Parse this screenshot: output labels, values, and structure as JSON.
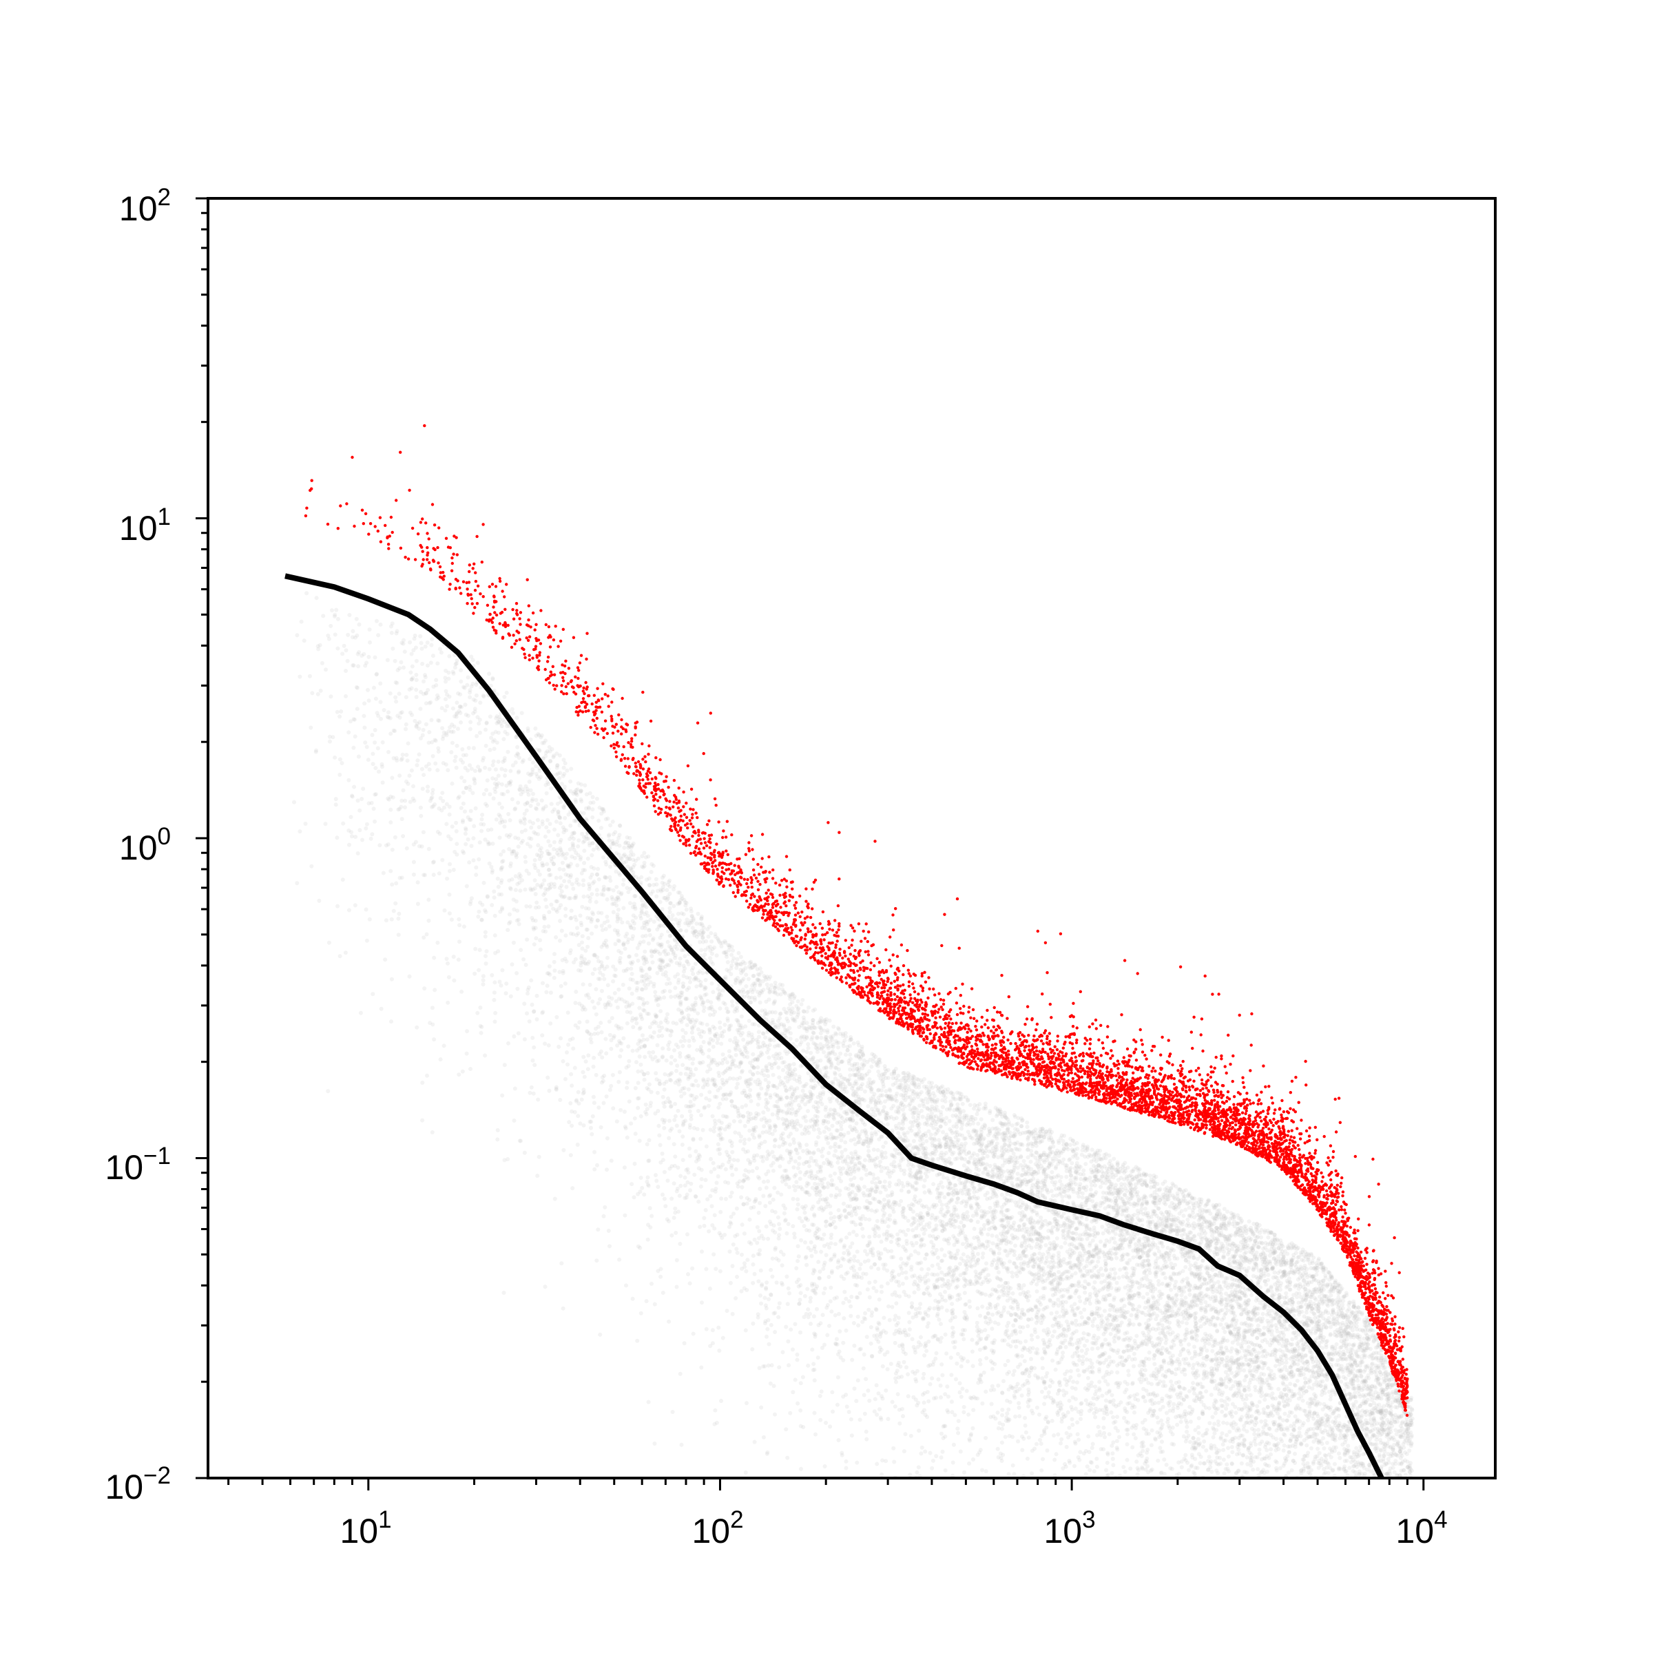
{
  "chart_data": {
    "type": "scatter",
    "title": "",
    "xlabel": "",
    "ylabel": "",
    "x_scale": "log",
    "y_scale": "log",
    "xlim": [
      3.5,
      16000
    ],
    "ylim": [
      0.01,
      100
    ],
    "x_ticks": [
      {
        "base": "10",
        "exp": "1",
        "value": 10
      },
      {
        "base": "10",
        "exp": "2",
        "value": 100
      },
      {
        "base": "10",
        "exp": "3",
        "value": 1000
      },
      {
        "base": "10",
        "exp": "4",
        "value": 10000
      }
    ],
    "y_ticks": [
      {
        "base": "10",
        "exp": "−2",
        "value": 0.01
      },
      {
        "base": "10",
        "exp": "−1",
        "value": 0.1
      },
      {
        "base": "10",
        "exp": "0",
        "value": 1
      },
      {
        "base": "10",
        "exp": "1",
        "value": 10
      },
      {
        "base": "10",
        "exp": "2",
        "value": 100
      }
    ],
    "grid": false,
    "legend": "none",
    "series": [
      {
        "type": "scatter-density",
        "color": "#bdbdbd",
        "x_range": [
          6,
          9300
        ],
        "upper_envelope": [
          [
            6,
            7.0
          ],
          [
            20,
            4.2
          ],
          [
            50,
            1.3
          ],
          [
            100,
            0.55
          ],
          [
            300,
            0.22
          ],
          [
            1000,
            0.13
          ],
          [
            3000,
            0.075
          ],
          [
            5000,
            0.055
          ],
          [
            7000,
            0.035
          ],
          [
            9000,
            0.02
          ]
        ]
      },
      {
        "type": "scatter",
        "color": "#ff0000",
        "ridge": [
          [
            6,
            11.5
          ],
          [
            8,
            10.0
          ],
          [
            10,
            9.3
          ],
          [
            15,
            7.5
          ],
          [
            20,
            5.5
          ],
          [
            30,
            3.7
          ],
          [
            50,
            2.0
          ],
          [
            70,
            1.2
          ],
          [
            100,
            0.78
          ],
          [
            150,
            0.55
          ],
          [
            200,
            0.42
          ],
          [
            300,
            0.3
          ],
          [
            500,
            0.21
          ],
          [
            1000,
            0.175
          ],
          [
            2000,
            0.14
          ],
          [
            3000,
            0.12
          ],
          [
            4000,
            0.1
          ],
          [
            5000,
            0.075
          ],
          [
            6000,
            0.055
          ],
          [
            7000,
            0.035
          ],
          [
            8000,
            0.025
          ],
          [
            9000,
            0.017
          ]
        ]
      },
      {
        "type": "line",
        "color": "#000000",
        "points": [
          [
            5.8,
            6.6
          ],
          [
            8,
            6.1
          ],
          [
            10,
            5.6
          ],
          [
            13,
            5.0
          ],
          [
            15,
            4.5
          ],
          [
            18,
            3.8
          ],
          [
            22,
            2.9
          ],
          [
            30,
            1.8
          ],
          [
            40,
            1.15
          ],
          [
            60,
            0.68
          ],
          [
            80,
            0.46
          ],
          [
            100,
            0.36
          ],
          [
            130,
            0.27
          ],
          [
            160,
            0.22
          ],
          [
            200,
            0.17
          ],
          [
            250,
            0.14
          ],
          [
            300,
            0.12
          ],
          [
            350,
            0.1
          ],
          [
            400,
            0.095
          ],
          [
            500,
            0.088
          ],
          [
            600,
            0.083
          ],
          [
            700,
            0.078
          ],
          [
            800,
            0.073
          ],
          [
            1000,
            0.069
          ],
          [
            1200,
            0.066
          ],
          [
            1400,
            0.062
          ],
          [
            1700,
            0.058
          ],
          [
            2000,
            0.055
          ],
          [
            2300,
            0.052
          ],
          [
            2600,
            0.046
          ],
          [
            3000,
            0.043
          ],
          [
            3500,
            0.037
          ],
          [
            4000,
            0.033
          ],
          [
            4500,
            0.029
          ],
          [
            5000,
            0.025
          ],
          [
            5500,
            0.021
          ],
          [
            6000,
            0.017
          ],
          [
            6500,
            0.014
          ],
          [
            7000,
            0.012
          ],
          [
            7600,
            0.01
          ]
        ]
      }
    ]
  }
}
